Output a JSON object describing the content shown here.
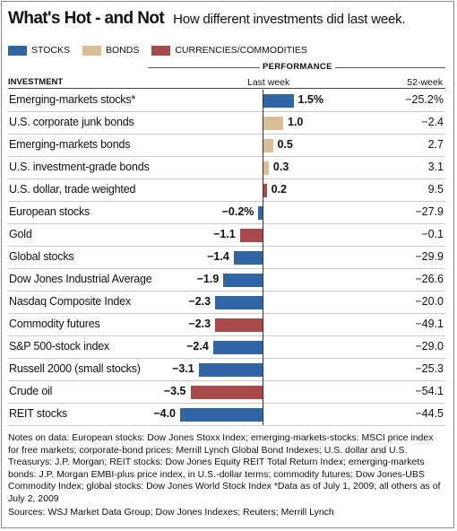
{
  "header": {
    "title": "What's Hot - and Not",
    "subtitle": "How different investments did last week."
  },
  "legend": {
    "stocks": "STOCKS",
    "bonds": "BONDS",
    "currencies": "CURRENCIES/COMMODITIES"
  },
  "colors": {
    "stocks": "#2f65a6",
    "bonds": "#d9bf96",
    "currencies": "#a84a4c"
  },
  "table_headers": {
    "performance": "PERFORMANCE",
    "investment": "INVESTMENT",
    "last_week": "Last week",
    "week52": "52-week"
  },
  "chart_data": {
    "type": "bar",
    "orientation": "horizontal",
    "unit": "%",
    "rows": [
      {
        "label": "Emerging-markets stocks*",
        "category": "stocks",
        "last_week": 1.5,
        "last_week_label": "1.5%",
        "week52": "−25.2%"
      },
      {
        "label": "U.S. corporate junk bonds",
        "category": "bonds",
        "last_week": 1.0,
        "last_week_label": "1.0",
        "week52": "−2.4"
      },
      {
        "label": "Emerging-markets bonds",
        "category": "bonds",
        "last_week": 0.5,
        "last_week_label": "0.5",
        "week52": "2.7"
      },
      {
        "label": "U.S. investment-grade bonds",
        "category": "bonds",
        "last_week": 0.3,
        "last_week_label": "0.3",
        "week52": "3.1"
      },
      {
        "label": "U.S. dollar, trade weighted",
        "category": "currencies",
        "last_week": 0.2,
        "last_week_label": "0.2",
        "week52": "9.5"
      },
      {
        "label": "European stocks",
        "category": "stocks",
        "last_week": -0.2,
        "last_week_label": "−0.2%",
        "week52": "−27.9"
      },
      {
        "label": "Gold",
        "category": "currencies",
        "last_week": -1.1,
        "last_week_label": "−1.1",
        "week52": "−0.1"
      },
      {
        "label": "Global stocks",
        "category": "stocks",
        "last_week": -1.4,
        "last_week_label": "−1.4",
        "week52": "−29.9"
      },
      {
        "label": "Dow Jones Industrial Average",
        "category": "stocks",
        "last_week": -1.9,
        "last_week_label": "−1.9",
        "week52": "−26.6"
      },
      {
        "label": "Nasdaq Composite Index",
        "category": "stocks",
        "last_week": -2.3,
        "last_week_label": "−2.3",
        "week52": "−20.0"
      },
      {
        "label": "Commodity futures",
        "category": "currencies",
        "last_week": -2.3,
        "last_week_label": "−2.3",
        "week52": "−49.1"
      },
      {
        "label": "S&P 500-stock index",
        "category": "stocks",
        "last_week": -2.4,
        "last_week_label": "−2.4",
        "week52": "−29.0"
      },
      {
        "label": "Russell 2000 (small stocks)",
        "category": "stocks",
        "last_week": -3.1,
        "last_week_label": "−3.1",
        "week52": "−25.3"
      },
      {
        "label": "Crude oil",
        "category": "currencies",
        "last_week": -3.5,
        "last_week_label": "−3.5",
        "week52": "−54.1"
      },
      {
        "label": "REIT stocks",
        "category": "stocks",
        "last_week": -4.0,
        "last_week_label": "−4.0",
        "week52": "−44.5"
      }
    ]
  },
  "notes": "Notes on data: European stocks: Dow Jones Stoxx Index; emerging-markets-stocks: MSCI price index for free markets; corporate-bond prices: Merrill Lynch Global Bond Indexes; U.S. dollar and U.S. Treasurys: J.P. Morgan; REIT stocks: Dow Jones Equity REIT Total Return Index; emerging-markets bonds: J.P. Morgan EMBI-plus price index, in U.S.-dollar terms; commodity futures: Dow Jones-UBS Commodity Index; global stocks: Dow Jones World Stock Index  *Data as of July 1, 2009; all others as of July 2, 2009",
  "sources": "Sources: WSJ Market Data Group; Dow Jones Indexes; Reuters; Merrill Lynch"
}
